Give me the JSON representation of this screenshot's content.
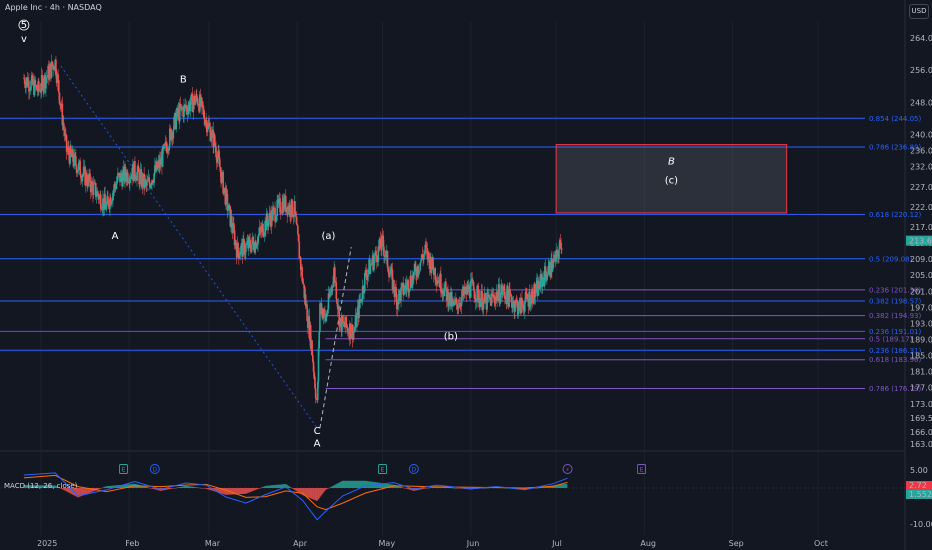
{
  "header": {
    "symbol_title": "Apple Inc · 4h · NASDAQ",
    "currency": "USD"
  },
  "colors": {
    "background": "#131722",
    "grid": "#1e222d",
    "up": "#26a69a",
    "down": "#ef5350",
    "fib_blue": "#2962ff",
    "fib_purple": "#7e57c2",
    "target_box": "#f23645",
    "macd_line": "#2962ff",
    "signal_line": "#ff6d00",
    "wave_path": "#787b86"
  },
  "chart_data": {
    "type": "candlestick",
    "title": "Apple Inc · 4h · NASDAQ",
    "x_tick_labels": [
      "2025",
      "Feb",
      "Mar",
      "Apr",
      "May",
      "Jun",
      "Jul",
      "Aug",
      "Sep",
      "Oct"
    ],
    "x_ticks": [
      "2025-01-01",
      "2025-02-01",
      "2025-03-01",
      "2025-04-01",
      "2025-05-01",
      "2025-06-01",
      "2025-07-01",
      "2025-08-01",
      "2025-09-01",
      "2025-10-01"
    ],
    "y_tick_labels": [
      "264.00",
      "256.00",
      "248.00",
      "240.00",
      "236.00",
      "232.00",
      "227.00",
      "222.00",
      "217.00",
      "213.00",
      "209.00",
      "205.00",
      "201.00",
      "197.00",
      "193.00",
      "189.00",
      "185.00",
      "181.00",
      "177.00",
      "173.00",
      "169.50",
      "166.00",
      "163.00"
    ],
    "ylim": [
      162,
      268
    ],
    "price_path": [
      [
        "2024-12-26",
        254
      ],
      [
        "2024-12-31",
        251
      ],
      [
        "2025-01-06",
        258
      ],
      [
        "2025-01-10",
        236
      ],
      [
        "2025-01-14",
        232
      ],
      [
        "2025-01-20",
        226
      ],
      [
        "2025-01-24",
        222
      ],
      [
        "2025-01-28",
        229
      ],
      [
        "2025-02-03",
        231
      ],
      [
        "2025-02-07",
        227
      ],
      [
        "2025-02-12",
        233
      ],
      [
        "2025-02-18",
        245
      ],
      [
        "2025-02-25",
        249
      ],
      [
        "2025-03-03",
        238
      ],
      [
        "2025-03-07",
        224
      ],
      [
        "2025-03-11",
        211
      ],
      [
        "2025-03-17",
        213
      ],
      [
        "2025-03-21",
        218
      ],
      [
        "2025-03-27",
        223
      ],
      [
        "2025-03-31",
        221
      ],
      [
        "2025-04-03",
        203
      ],
      [
        "2025-04-06",
        188
      ],
      [
        "2025-04-08",
        172.4
      ],
      [
        "2025-04-09",
        198
      ],
      [
        "2025-04-11",
        194
      ],
      [
        "2025-04-14",
        206
      ],
      [
        "2025-04-16",
        193
      ],
      [
        "2025-04-21",
        191
      ],
      [
        "2025-04-25",
        205
      ],
      [
        "2025-05-01",
        213
      ],
      [
        "2025-05-06",
        199
      ],
      [
        "2025-05-12",
        205
      ],
      [
        "2025-05-16",
        211
      ],
      [
        "2025-05-20",
        205
      ],
      [
        "2025-05-26",
        197
      ],
      [
        "2025-06-01",
        202
      ],
      [
        "2025-06-06",
        198
      ],
      [
        "2025-06-12",
        201
      ],
      [
        "2025-06-18",
        197
      ],
      [
        "2025-06-24",
        201
      ],
      [
        "2025-06-27",
        205
      ],
      [
        "2025-07-01",
        209
      ],
      [
        "2025-07-03",
        213.6
      ]
    ],
    "last_price": "213.60",
    "fib_levels": [
      {
        "label": "0.854 (244.05)",
        "price": 244.05,
        "color": "#2962ff",
        "from": "2024-12-05"
      },
      {
        "label": "0.786 (236.89)",
        "price": 236.89,
        "color": "#2962ff",
        "from": "2024-12-05"
      },
      {
        "label": "0.618 (220.12)",
        "price": 220.12,
        "color": "#2962ff",
        "from": "2024-12-05"
      },
      {
        "label": "0.5 (209.08)",
        "price": 209.08,
        "color": "#2962ff",
        "from": "2024-12-05"
      },
      {
        "label": "0.236 (201.36)",
        "price": 201.36,
        "color": "#7e57c2",
        "from": "2025-04-11"
      },
      {
        "label": "0.382 (198.57)",
        "price": 198.57,
        "color": "#2962ff",
        "from": "2024-12-05"
      },
      {
        "label": "0.382 (194.93)",
        "price": 194.93,
        "color": "#7e57c2",
        "from": "2025-04-11"
      },
      {
        "label": "0.236 (191.01)",
        "price": 191.01,
        "color": "#2962ff",
        "from": "2024-12-05"
      },
      {
        "label": "0.5 (189.17)",
        "price": 189.17,
        "color": "#7e57c2",
        "from": "2025-04-11"
      },
      {
        "label": "0.236 (186.31)",
        "price": 186.31,
        "color": "#2962ff",
        "from": "2024-12-05"
      },
      {
        "label": "0.618 (183.96)",
        "price": 183.96,
        "color": "#7e57c2",
        "from": "2025-04-11"
      },
      {
        "label": "0.786 (176.79)",
        "price": 176.79,
        "color": "#7e57c2",
        "from": "2025-04-11"
      }
    ],
    "target_box": {
      "from": "2025-07-01",
      "to": "2025-09-20",
      "top": 237.5,
      "bottom": 220.5,
      "label_top": "B",
      "label_bottom": "(c)"
    },
    "wave_labels": [
      {
        "text": "5",
        "date": "2024-12-26",
        "price": 266.5,
        "style": "circle"
      },
      {
        "text": "v",
        "date": "2024-12-26",
        "price": 263
      },
      {
        "text": "B",
        "date": "2025-02-20",
        "price": 253
      },
      {
        "text": "A",
        "date": "2025-01-27",
        "price": 214
      },
      {
        "text": "(a)",
        "date": "2025-04-12",
        "price": 214
      },
      {
        "text": "(b)",
        "date": "2025-05-25",
        "price": 189
      },
      {
        "text": "C",
        "date": "2025-04-08",
        "price": 165.5
      },
      {
        "text": "A",
        "date": "2025-04-08",
        "price": 162.4
      }
    ],
    "time_markers": [
      {
        "icon": "E",
        "date": "2025-01-30",
        "color": "#26a69a"
      },
      {
        "icon": "D",
        "date": "2025-02-10",
        "color": "#2962ff"
      },
      {
        "icon": "E",
        "date": "2025-05-01",
        "color": "#26a69a"
      },
      {
        "icon": "D",
        "date": "2025-05-12",
        "color": "#2962ff"
      },
      {
        "icon": "bolt",
        "date": "2025-07-05",
        "color": "#7e57c2"
      },
      {
        "icon": "E",
        "date": "2025-07-31",
        "color": "#7e57c2"
      }
    ],
    "macd": {
      "label": "MACD (12, 26, close)",
      "y_tick_labels": [
        "5.00",
        "-10.00"
      ],
      "values": [
        "2.72",
        "1.5524"
      ],
      "macd_line": [
        [
          "2024-12-26",
          3.6
        ],
        [
          "2025-01-06",
          4.2
        ],
        [
          "2025-01-14",
          -2.2
        ],
        [
          "2025-01-24",
          -0.5
        ],
        [
          "2025-02-03",
          1.8
        ],
        [
          "2025-02-12",
          -0.4
        ],
        [
          "2025-02-21",
          1.4
        ],
        [
          "2025-02-28",
          0.8
        ],
        [
          "2025-03-07",
          -2.5
        ],
        [
          "2025-03-14",
          -4.2
        ],
        [
          "2025-03-21",
          -1.8
        ],
        [
          "2025-03-28",
          0.3
        ],
        [
          "2025-04-03",
          -3.5
        ],
        [
          "2025-04-08",
          -8.8
        ],
        [
          "2025-04-11",
          -6.5
        ],
        [
          "2025-04-17",
          -2.2
        ],
        [
          "2025-04-25",
          0.6
        ],
        [
          "2025-05-05",
          1.5
        ],
        [
          "2025-05-12",
          -0.3
        ],
        [
          "2025-05-20",
          0.8
        ],
        [
          "2025-06-01",
          -0.2
        ],
        [
          "2025-06-10",
          0.4
        ],
        [
          "2025-06-20",
          -0.5
        ],
        [
          "2025-06-30",
          1.2
        ],
        [
          "2025-07-05",
          2.72
        ]
      ],
      "signal_line": [
        [
          "2024-12-26",
          2.8
        ],
        [
          "2025-01-06",
          3.5
        ],
        [
          "2025-01-14",
          0.4
        ],
        [
          "2025-01-24",
          -1.0
        ],
        [
          "2025-02-03",
          0.6
        ],
        [
          "2025-02-12",
          0.4
        ],
        [
          "2025-02-21",
          0.8
        ],
        [
          "2025-02-28",
          1.0
        ],
        [
          "2025-03-07",
          -0.6
        ],
        [
          "2025-03-14",
          -2.6
        ],
        [
          "2025-03-21",
          -2.4
        ],
        [
          "2025-03-28",
          -0.8
        ],
        [
          "2025-04-03",
          -1.5
        ],
        [
          "2025-04-08",
          -5.2
        ],
        [
          "2025-04-11",
          -6.0
        ],
        [
          "2025-04-17",
          -4.2
        ],
        [
          "2025-04-25",
          -1.4
        ],
        [
          "2025-05-05",
          0.6
        ],
        [
          "2025-05-12",
          0.5
        ],
        [
          "2025-05-20",
          0.3
        ],
        [
          "2025-06-01",
          0.2
        ],
        [
          "2025-06-10",
          0.1
        ],
        [
          "2025-06-20",
          0.0
        ],
        [
          "2025-06-30",
          0.5
        ],
        [
          "2025-07-05",
          1.5524
        ]
      ]
    }
  }
}
